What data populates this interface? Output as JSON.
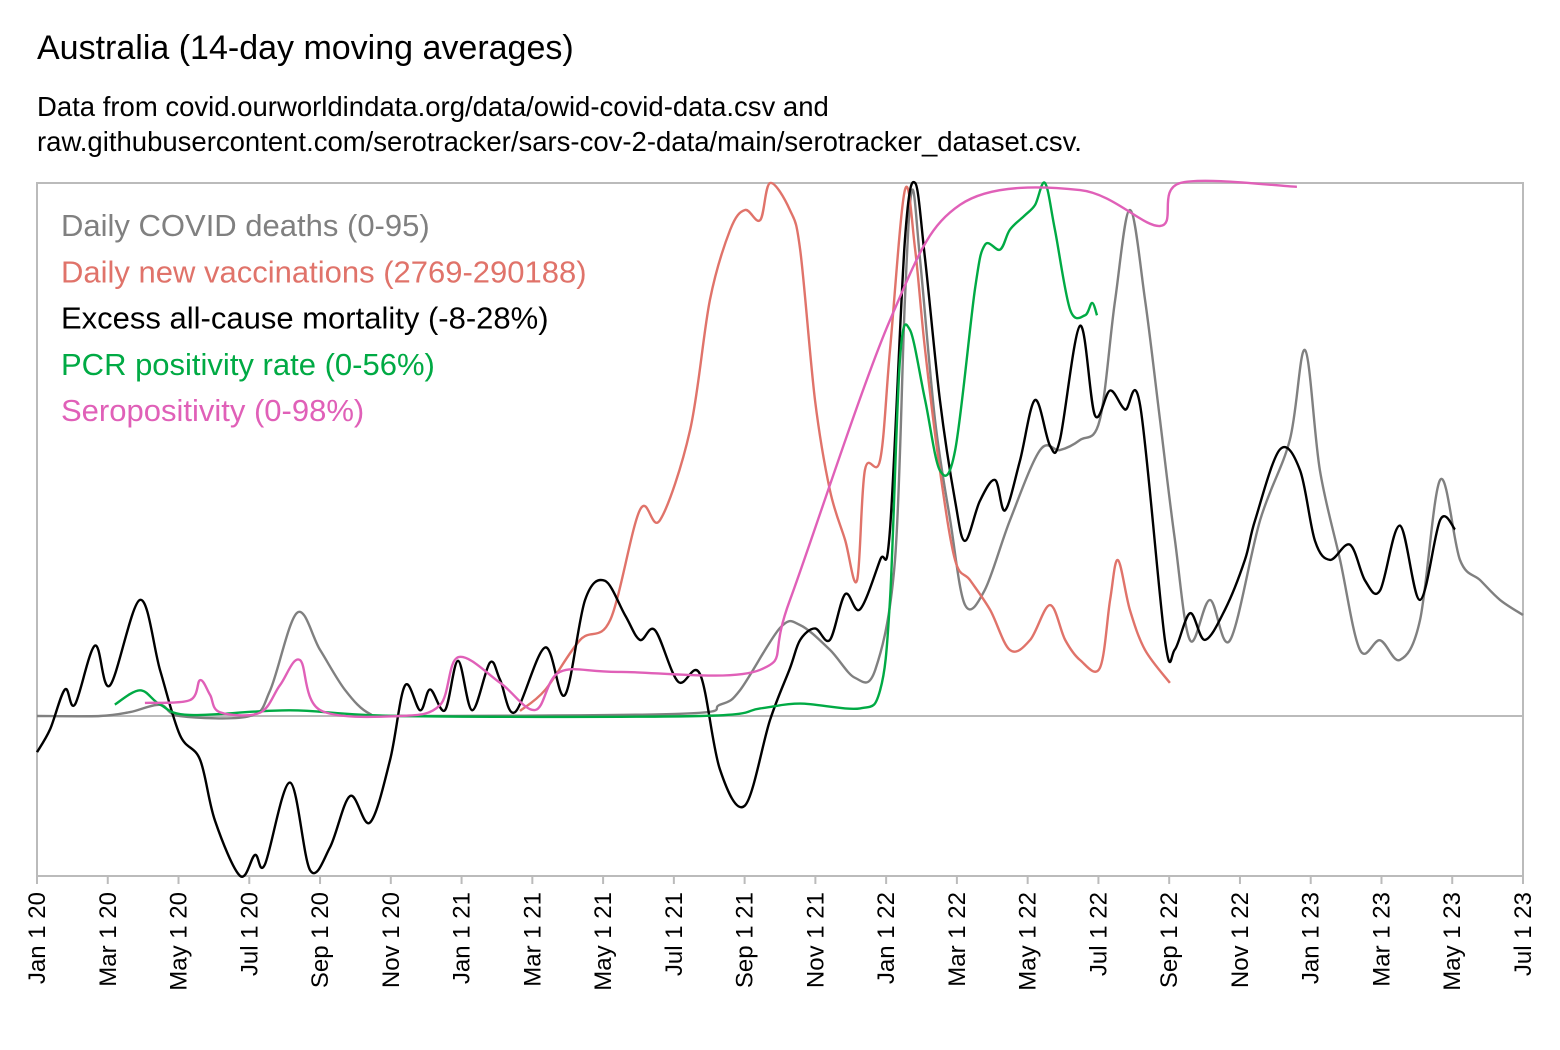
{
  "chart_data": {
    "type": "line",
    "title": "Australia (14-day moving averages)",
    "subtitle": [
      "Data from covid.ourworldindata.org/data/owid-covid-data.csv and",
      "raw.githubusercontent.com/serotracker/sars-cov-2-data/main/serotracker_dataset.csv."
    ],
    "x_unit": "months since Jan 1 2020",
    "xlim": [
      0,
      42
    ],
    "x_ticks": [
      "Jan 1 20",
      "Mar 1 20",
      "May 1 20",
      "Jul 1 20",
      "Sep 1 20",
      "Nov 1 20",
      "Jan 1 21",
      "Mar 1 21",
      "May 1 21",
      "Jul 1 21",
      "Sep 1 21",
      "Nov 1 21",
      "Jan 1 22",
      "Mar 1 22",
      "May 1 22",
      "Jul 1 22",
      "Sep 1 22",
      "Nov 1 22",
      "Jan 1 23",
      "Mar 1 23",
      "May 1 23",
      "Jul 1 23"
    ],
    "legend_position": "top-left",
    "series": [
      {
        "name": "Daily COVID deaths (0-95)",
        "color": "#808080",
        "max": 95,
        "points": [
          [
            0,
            0
          ],
          [
            1.78,
            0
          ],
          [
            2.63,
            0.7
          ],
          [
            3.48,
            2
          ],
          [
            4.04,
            0
          ],
          [
            6.02,
            0
          ],
          [
            6.59,
            4.6
          ],
          [
            7.35,
            18.4
          ],
          [
            8,
            11.8
          ],
          [
            8.71,
            4.6
          ],
          [
            9.41,
            0.4
          ],
          [
            10.26,
            0
          ],
          [
            18.17,
            0.4
          ],
          [
            19.3,
            2
          ],
          [
            19.87,
            4.6
          ],
          [
            21,
            15.7
          ],
          [
            21.57,
            16.2
          ],
          [
            22.41,
            11.8
          ],
          [
            23.12,
            6.8
          ],
          [
            23.69,
            8.2
          ],
          [
            24.25,
            27.8
          ],
          [
            24.53,
            74.1
          ],
          [
            24.73,
            93.7
          ],
          [
            24.96,
            81.3
          ],
          [
            25.38,
            52.8
          ],
          [
            25.81,
            34.9
          ],
          [
            26.23,
            19.8
          ],
          [
            26.79,
            22.5
          ],
          [
            27.5,
            34.9
          ],
          [
            28.35,
            47.4
          ],
          [
            28.91,
            47.4
          ],
          [
            29.48,
            49.2
          ],
          [
            30.04,
            52.8
          ],
          [
            30.47,
            74.1
          ],
          [
            30.89,
            90.2
          ],
          [
            31.32,
            74.1
          ],
          [
            31.74,
            52.8
          ],
          [
            32.16,
            31.4
          ],
          [
            32.59,
            13.5
          ],
          [
            33.15,
            20.7
          ],
          [
            33.72,
            13.5
          ],
          [
            34.57,
            34.9
          ],
          [
            35.41,
            49.2
          ],
          [
            35.84,
            65.2
          ],
          [
            36.26,
            43.8
          ],
          [
            36.83,
            27.8
          ],
          [
            37.39,
            11.8
          ],
          [
            37.96,
            13.5
          ],
          [
            38.52,
            10
          ],
          [
            39.09,
            17.1
          ],
          [
            39.66,
            42.1
          ],
          [
            40.22,
            27.8
          ],
          [
            40.79,
            24.2
          ],
          [
            41.35,
            20.7
          ],
          [
            42,
            18
          ]
        ]
      },
      {
        "name": "Daily new vaccinations (2769-290188)",
        "color": "#E0736A",
        "max": 290188,
        "points": [
          [
            13.65,
            2769
          ],
          [
            14.36,
            14150
          ],
          [
            15.35,
            41370
          ],
          [
            16.2,
            52260
          ],
          [
            17.04,
            112150
          ],
          [
            17.61,
            106700
          ],
          [
            18.46,
            155700
          ],
          [
            19.02,
            226500
          ],
          [
            19.59,
            264600
          ],
          [
            20.01,
            275500
          ],
          [
            20.44,
            270000
          ],
          [
            20.72,
            290188
          ],
          [
            21.28,
            275500
          ],
          [
            21.57,
            253700
          ],
          [
            21.99,
            172000
          ],
          [
            22.41,
            123000
          ],
          [
            22.84,
            95800
          ],
          [
            23.18,
            74000
          ],
          [
            23.4,
            133900
          ],
          [
            23.83,
            139400
          ],
          [
            24.11,
            199300
          ],
          [
            24.53,
            286400
          ],
          [
            24.82,
            253700
          ],
          [
            25.1,
            199300
          ],
          [
            25.52,
            133900
          ],
          [
            25.95,
            84900
          ],
          [
            26.37,
            74000
          ],
          [
            26.94,
            57700
          ],
          [
            27.5,
            35900
          ],
          [
            28.07,
            41400
          ],
          [
            28.63,
            60400
          ],
          [
            29.06,
            41400
          ],
          [
            29.48,
            30500
          ],
          [
            30.04,
            26100
          ],
          [
            30.33,
            63200
          ],
          [
            30.55,
            84900
          ],
          [
            30.89,
            57700
          ],
          [
            31.32,
            35900
          ],
          [
            32.02,
            18000
          ]
        ]
      },
      {
        "name": "Excess all-cause mortality (-8-28%)",
        "color": "#000000",
        "max": 28,
        "points": [
          [
            0,
            -1.9
          ],
          [
            0.37,
            -0.7
          ],
          [
            0.79,
            1.4
          ],
          [
            1.07,
            0.6
          ],
          [
            1.64,
            3.7
          ],
          [
            2.06,
            1.6
          ],
          [
            2.91,
            6.1
          ],
          [
            3.48,
            2.4
          ],
          [
            4.04,
            -1
          ],
          [
            4.61,
            -2.3
          ],
          [
            5.03,
            -5.5
          ],
          [
            5.74,
            -8.4
          ],
          [
            6.16,
            -7.3
          ],
          [
            6.44,
            -7.8
          ],
          [
            7.15,
            -3.5
          ],
          [
            7.72,
            -8.1
          ],
          [
            8.28,
            -6.9
          ],
          [
            8.85,
            -4.2
          ],
          [
            9.41,
            -5.6
          ],
          [
            9.98,
            -2.3
          ],
          [
            10.4,
            1.6
          ],
          [
            10.83,
            0.3
          ],
          [
            11.11,
            1.4
          ],
          [
            11.53,
            0.3
          ],
          [
            11.9,
            2.9
          ],
          [
            12.3,
            0.3
          ],
          [
            12.8,
            2.8
          ],
          [
            13.09,
            1.9
          ],
          [
            13.51,
            0.2
          ],
          [
            14.36,
            3.6
          ],
          [
            14.92,
            1.1
          ],
          [
            15.49,
            6.1
          ],
          [
            16.05,
            7.1
          ],
          [
            16.62,
            5.3
          ],
          [
            17.04,
            4
          ],
          [
            17.47,
            4.5
          ],
          [
            18.12,
            1.8
          ],
          [
            18.74,
            2.2
          ],
          [
            19.3,
            -2.8
          ],
          [
            20.01,
            -4.7
          ],
          [
            20.72,
            -0.2
          ],
          [
            21.28,
            2.5
          ],
          [
            21.57,
            4
          ],
          [
            21.99,
            4.6
          ],
          [
            22.41,
            4
          ],
          [
            22.84,
            6.4
          ],
          [
            23.26,
            5.6
          ],
          [
            23.83,
            8.2
          ],
          [
            24.11,
            9.8
          ],
          [
            24.53,
            25
          ],
          [
            24.82,
            28
          ],
          [
            25.1,
            24
          ],
          [
            25.52,
            16.6
          ],
          [
            25.95,
            11.3
          ],
          [
            26.23,
            9.2
          ],
          [
            26.65,
            11.3
          ],
          [
            27.08,
            12.4
          ],
          [
            27.36,
            10.8
          ],
          [
            27.78,
            13.4
          ],
          [
            28.21,
            16.6
          ],
          [
            28.63,
            14.2
          ],
          [
            28.91,
            14.5
          ],
          [
            29.48,
            20.5
          ],
          [
            29.9,
            15.8
          ],
          [
            30.33,
            17.1
          ],
          [
            30.75,
            16.1
          ],
          [
            31.18,
            16.3
          ],
          [
            31.88,
            4
          ],
          [
            32.16,
            3.5
          ],
          [
            32.59,
            5.4
          ],
          [
            33.01,
            4
          ],
          [
            33.58,
            5.6
          ],
          [
            34.14,
            8.2
          ],
          [
            34.43,
            10.3
          ],
          [
            35.13,
            14
          ],
          [
            35.7,
            12.9
          ],
          [
            36.12,
            9.2
          ],
          [
            36.55,
            8.2
          ],
          [
            37.11,
            9
          ],
          [
            37.54,
            7.1
          ],
          [
            37.96,
            6.6
          ],
          [
            38.52,
            10
          ],
          [
            39.09,
            6.1
          ],
          [
            39.66,
            10.3
          ],
          [
            40.08,
            9.8
          ]
        ]
      },
      {
        "name": "PCR positivity rate (0-56%)",
        "color": "#00AA44",
        "max": 56,
        "points": [
          [
            2.2,
            1.2
          ],
          [
            2.91,
            2.7
          ],
          [
            3.48,
            1.2
          ],
          [
            4.32,
            0.1
          ],
          [
            7.15,
            0.6
          ],
          [
            10.26,
            0
          ],
          [
            18.74,
            0
          ],
          [
            20.44,
            0.8
          ],
          [
            21.57,
            1.3
          ],
          [
            23.26,
            0.8
          ],
          [
            23.83,
            2.7
          ],
          [
            24.11,
            12.2
          ],
          [
            24.39,
            37.4
          ],
          [
            24.67,
            40.6
          ],
          [
            25.1,
            33.2
          ],
          [
            25.52,
            25.8
          ],
          [
            25.95,
            27.9
          ],
          [
            26.51,
            44.8
          ],
          [
            26.79,
            49.5
          ],
          [
            27.22,
            49
          ],
          [
            27.5,
            51.1
          ],
          [
            27.92,
            52.6
          ],
          [
            28.21,
            53.7
          ],
          [
            28.49,
            56
          ],
          [
            28.77,
            51.1
          ],
          [
            29.2,
            42.7
          ],
          [
            29.62,
            42.1
          ],
          [
            29.82,
            43.4
          ],
          [
            29.96,
            42.1
          ]
        ]
      },
      {
        "name": "Seropositivity (0-98%)",
        "color": "#E060B8",
        "max": 98,
        "points": [
          [
            3.05,
            2.4
          ],
          [
            4.32,
            2.9
          ],
          [
            4.61,
            6.6
          ],
          [
            4.89,
            3.9
          ],
          [
            5.17,
            0.7
          ],
          [
            6.3,
            0.6
          ],
          [
            6.87,
            5.7
          ],
          [
            7.43,
            10.3
          ],
          [
            8,
            1.1
          ],
          [
            10.26,
            0
          ],
          [
            11.39,
            2
          ],
          [
            11.9,
            10.8
          ],
          [
            13.09,
            6.1
          ],
          [
            14.08,
            1.1
          ],
          [
            14.78,
            8.1
          ],
          [
            16.48,
            8.1
          ],
          [
            20.44,
            8.5
          ],
          [
            21.28,
            21.3
          ],
          [
            24.11,
            72.8
          ],
          [
            26.09,
            94
          ],
          [
            29.48,
            96.7
          ],
          [
            31.74,
            90.1
          ],
          [
            32.31,
            98
          ],
          [
            35.61,
            97.3
          ]
        ]
      }
    ]
  }
}
